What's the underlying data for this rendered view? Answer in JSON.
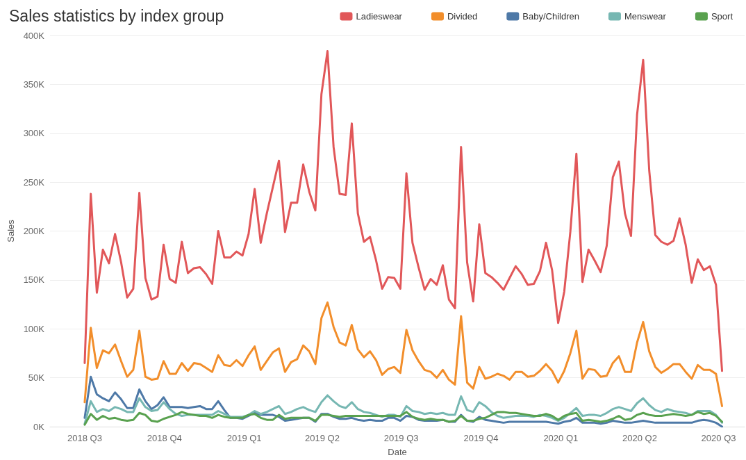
{
  "chart_data": {
    "type": "line",
    "title": "Sales statistics by index group",
    "xlabel": "Date",
    "ylabel": "Sales",
    "x": [
      "2018-07-01",
      "2018-07-08",
      "2018-07-15",
      "2018-07-22",
      "2018-07-29",
      "2018-08-05",
      "2018-08-12",
      "2018-08-19",
      "2018-08-26",
      "2018-09-02",
      "2018-09-09",
      "2018-09-16",
      "2018-09-23",
      "2018-09-30",
      "2018-10-07",
      "2018-10-14",
      "2018-10-21",
      "2018-10-28",
      "2018-11-04",
      "2018-11-11",
      "2018-11-18",
      "2018-11-25",
      "2018-12-02",
      "2018-12-09",
      "2018-12-16",
      "2018-12-23",
      "2018-12-30",
      "2019-01-06",
      "2019-01-13",
      "2019-01-20",
      "2019-01-27",
      "2019-02-03",
      "2019-02-10",
      "2019-02-17",
      "2019-02-24",
      "2019-03-03",
      "2019-03-10",
      "2019-03-17",
      "2019-03-24",
      "2019-03-31",
      "2019-04-07",
      "2019-04-14",
      "2019-04-21",
      "2019-04-28",
      "2019-05-05",
      "2019-05-12",
      "2019-05-19",
      "2019-05-26",
      "2019-06-02",
      "2019-06-09",
      "2019-06-16",
      "2019-06-23",
      "2019-06-30",
      "2019-07-07",
      "2019-07-14",
      "2019-07-21",
      "2019-07-28",
      "2019-08-04",
      "2019-08-11",
      "2019-08-18",
      "2019-08-25",
      "2019-09-01",
      "2019-09-08",
      "2019-09-15",
      "2019-09-22",
      "2019-09-29",
      "2019-10-06",
      "2019-10-13",
      "2019-10-20",
      "2019-10-27",
      "2019-11-03",
      "2019-11-10",
      "2019-11-17",
      "2019-11-24",
      "2019-12-01",
      "2019-12-08",
      "2019-12-15",
      "2019-12-22",
      "2019-12-29",
      "2020-01-05",
      "2020-01-12",
      "2020-01-19",
      "2020-01-26",
      "2020-02-02",
      "2020-02-09",
      "2020-02-16",
      "2020-02-23",
      "2020-03-01",
      "2020-03-08",
      "2020-03-15",
      "2020-03-22",
      "2020-03-29",
      "2020-04-05",
      "2020-04-12",
      "2020-04-19",
      "2020-04-26",
      "2020-05-03",
      "2020-05-10",
      "2020-05-17",
      "2020-05-24",
      "2020-05-31",
      "2020-06-07",
      "2020-06-14",
      "2020-06-21",
      "2020-06-28",
      "2020-07-05"
    ],
    "series": [
      {
        "name": "Ladieswear",
        "color": "#e15759",
        "values": [
          65000,
          238000,
          137000,
          181000,
          167000,
          197000,
          168000,
          132000,
          141000,
          239000,
          152000,
          130000,
          133000,
          186000,
          151000,
          147000,
          189000,
          157000,
          162000,
          163000,
          156000,
          146000,
          200000,
          173000,
          173000,
          179000,
          175000,
          197000,
          243000,
          188000,
          218000,
          245000,
          272000,
          199000,
          229000,
          229000,
          268000,
          240000,
          221000,
          340000,
          384000,
          286000,
          238000,
          237000,
          310000,
          218000,
          189000,
          194000,
          170000,
          141000,
          153000,
          152000,
          141000,
          259000,
          188000,
          163000,
          140000,
          151000,
          145000,
          165000,
          130000,
          121000,
          286000,
          168000,
          128000,
          207000,
          157000,
          153000,
          147000,
          140000,
          152000,
          164000,
          156000,
          145000,
          146000,
          159000,
          188000,
          160000,
          106000,
          138000,
          199000,
          279000,
          148000,
          181000,
          170000,
          158000,
          185000,
          255000,
          271000,
          218000,
          195000,
          319000,
          375000,
          262000,
          196000,
          189000,
          186000,
          190000,
          213000,
          186000,
          147000,
          171000,
          160000,
          164000,
          145000,
          57000
        ]
      },
      {
        "name": "Divided",
        "color": "#f28e2b",
        "values": [
          25000,
          101000,
          60000,
          78000,
          75000,
          84000,
          67000,
          51000,
          58000,
          98000,
          51000,
          48000,
          49000,
          67000,
          54000,
          54000,
          65000,
          57000,
          65000,
          64000,
          60000,
          56000,
          73000,
          63000,
          62000,
          68000,
          62000,
          73000,
          82000,
          58000,
          67000,
          76000,
          80000,
          56000,
          66000,
          69000,
          83000,
          77000,
          64000,
          111000,
          127000,
          102000,
          86000,
          83000,
          104000,
          79000,
          71000,
          77000,
          68000,
          53000,
          59000,
          61000,
          55000,
          99000,
          78000,
          67000,
          58000,
          56000,
          50000,
          58000,
          48000,
          43000,
          113000,
          45000,
          39000,
          61000,
          49000,
          51000,
          54000,
          52000,
          48000,
          56000,
          56000,
          51000,
          52000,
          57000,
          64000,
          57000,
          45000,
          57000,
          75000,
          98000,
          49000,
          59000,
          58000,
          51000,
          52000,
          65000,
          72000,
          56000,
          56000,
          86000,
          107000,
          77000,
          61000,
          55000,
          59000,
          64000,
          64000,
          56000,
          49000,
          63000,
          58000,
          58000,
          54000,
          21000
        ]
      },
      {
        "name": "Baby/Children",
        "color": "#4e79a7",
        "values": [
          9000,
          51000,
          33000,
          29000,
          26000,
          35000,
          28000,
          19000,
          19000,
          38000,
          26000,
          18000,
          22000,
          30000,
          20000,
          20000,
          20000,
          19000,
          20000,
          21000,
          18000,
          18000,
          26000,
          17000,
          9000,
          9000,
          8000,
          11000,
          14000,
          12000,
          12000,
          12000,
          10000,
          6000,
          7000,
          8000,
          9000,
          9000,
          5000,
          13000,
          13000,
          10000,
          8000,
          8000,
          9000,
          7000,
          6000,
          7000,
          6000,
          6000,
          9000,
          9000,
          6000,
          11000,
          10000,
          7000,
          6000,
          6000,
          6000,
          7000,
          5000,
          5000,
          12000,
          6000,
          5000,
          10000,
          7000,
          6000,
          5000,
          4000,
          5000,
          5000,
          5000,
          5000,
          5000,
          5000,
          5000,
          4000,
          3000,
          5000,
          6000,
          9000,
          4000,
          4000,
          4000,
          3000,
          4000,
          6000,
          5000,
          4000,
          4000,
          5000,
          6000,
          5000,
          4000,
          4000,
          4000,
          4000,
          4000,
          4000,
          4000,
          6000,
          7000,
          6000,
          4000,
          0
        ]
      },
      {
        "name": "Menswear",
        "color": "#76b7b2",
        "values": [
          3000,
          26000,
          15000,
          18000,
          16000,
          20000,
          18000,
          15000,
          15000,
          29000,
          20000,
          16000,
          17000,
          25000,
          18000,
          13000,
          11000,
          12000,
          12000,
          12000,
          12000,
          12000,
          16000,
          13000,
          10000,
          10000,
          10000,
          12000,
          16000,
          13000,
          15000,
          18000,
          21000,
          13000,
          15000,
          18000,
          20000,
          17000,
          15000,
          25000,
          32000,
          26000,
          21000,
          19000,
          25000,
          18000,
          15000,
          14000,
          12000,
          10000,
          12000,
          12000,
          10000,
          21000,
          16000,
          15000,
          13000,
          14000,
          13000,
          14000,
          12000,
          12000,
          31000,
          17000,
          15000,
          25000,
          21000,
          15000,
          11000,
          9000,
          10000,
          11000,
          11000,
          11000,
          10000,
          12000,
          11000,
          9000,
          6000,
          9000,
          14000,
          19000,
          11000,
          12000,
          12000,
          11000,
          14000,
          18000,
          20000,
          18000,
          16000,
          24000,
          29000,
          22000,
          17000,
          15000,
          18000,
          16000,
          15000,
          14000,
          12000,
          16000,
          16000,
          16000,
          12000,
          4000
        ]
      },
      {
        "name": "Sport",
        "color": "#59a14f",
        "values": [
          2000,
          13000,
          7000,
          11000,
          8000,
          9000,
          7000,
          6000,
          7000,
          14000,
          12000,
          6000,
          5000,
          8000,
          10000,
          12000,
          15000,
          13000,
          12000,
          11000,
          11000,
          9000,
          12000,
          10000,
          9000,
          9000,
          9000,
          12000,
          13000,
          9000,
          7000,
          7000,
          12000,
          8000,
          9000,
          9000,
          9000,
          9000,
          6000,
          12000,
          12000,
          11000,
          10000,
          11000,
          11000,
          11000,
          11000,
          11000,
          11000,
          11000,
          11000,
          11000,
          11000,
          15000,
          10000,
          8000,
          7000,
          8000,
          7000,
          7000,
          5000,
          6000,
          11000,
          6000,
          6000,
          8000,
          9000,
          12000,
          15000,
          15000,
          14000,
          14000,
          13000,
          12000,
          11000,
          11000,
          13000,
          11000,
          7000,
          11000,
          13000,
          14000,
          6000,
          7000,
          6000,
          5000,
          6000,
          8000,
          11000,
          7000,
          8000,
          12000,
          14000,
          12000,
          11000,
          11000,
          12000,
          13000,
          12000,
          11000,
          12000,
          15000,
          13000,
          14000,
          11000,
          5000
        ]
      }
    ],
    "xlim": [
      "2018-05-22",
      "2020-07-31"
    ],
    "xticks": [
      {
        "value": "2018-07-01",
        "label": "2018 Q3"
      },
      {
        "value": "2018-10-01",
        "label": "2018 Q4"
      },
      {
        "value": "2019-01-01",
        "label": "2019 Q1"
      },
      {
        "value": "2019-04-01",
        "label": "2019 Q2"
      },
      {
        "value": "2019-07-01",
        "label": "2019 Q3"
      },
      {
        "value": "2019-10-01",
        "label": "2019 Q4"
      },
      {
        "value": "2020-01-01",
        "label": "2020 Q1"
      },
      {
        "value": "2020-04-01",
        "label": "2020 Q2"
      },
      {
        "value": "2020-07-01",
        "label": "2020 Q3"
      }
    ],
    "ylim": [
      0,
      400000
    ],
    "yticks": [
      {
        "value": 0,
        "label": "0K"
      },
      {
        "value": 50000,
        "label": "50K"
      },
      {
        "value": 100000,
        "label": "100K"
      },
      {
        "value": 150000,
        "label": "150K"
      },
      {
        "value": 200000,
        "label": "200K"
      },
      {
        "value": 250000,
        "label": "250K"
      },
      {
        "value": 300000,
        "label": "300K"
      },
      {
        "value": 350000,
        "label": "350K"
      },
      {
        "value": 400000,
        "label": "400K"
      }
    ],
    "grid": "y",
    "legend": "top right",
    "marker": "none",
    "line_style": "solid"
  }
}
